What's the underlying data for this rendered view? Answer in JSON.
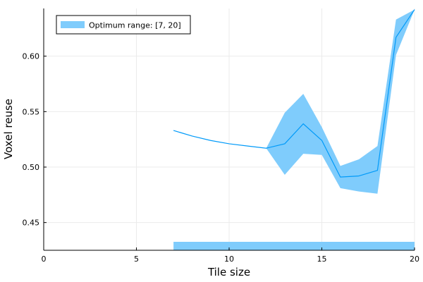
{
  "chart_data": {
    "type": "line",
    "xlabel": "Tile size",
    "ylabel": "Voxel reuse",
    "xlim": [
      0,
      20
    ],
    "ylim": [
      0.425,
      0.643
    ],
    "xticks": [
      0,
      5,
      10,
      15,
      20
    ],
    "yticks": [
      0.45,
      0.5,
      0.55,
      0.6
    ],
    "ytick_labels": [
      "0.45",
      "0.50",
      "0.55",
      "0.60"
    ],
    "grid": true,
    "legend_position": "top-left",
    "x": [
      7,
      8,
      9,
      10,
      11,
      12,
      13,
      14,
      15,
      16,
      17,
      18,
      19,
      20
    ],
    "series": [
      {
        "values": [
          0.533,
          0.528,
          0.524,
          0.521,
          0.519,
          0.517,
          0.521,
          0.539,
          0.524,
          0.491,
          0.492,
          0.497,
          0.617,
          0.642
        ],
        "lower": [
          0.533,
          0.528,
          0.524,
          0.521,
          0.519,
          0.517,
          0.493,
          0.512,
          0.511,
          0.481,
          0.478,
          0.476,
          0.601,
          0.642
        ],
        "upper": [
          0.533,
          0.528,
          0.524,
          0.521,
          0.519,
          0.517,
          0.549,
          0.566,
          0.536,
          0.501,
          0.507,
          0.519,
          0.633,
          0.642
        ]
      }
    ],
    "optimum_range": {
      "label": "Optimum range: [7, 20]",
      "start": 7,
      "end": 20
    },
    "colors": {
      "line": "#009af9",
      "band": "#7fccfc",
      "axis": "#000000",
      "grid": "#ebebeb"
    }
  }
}
